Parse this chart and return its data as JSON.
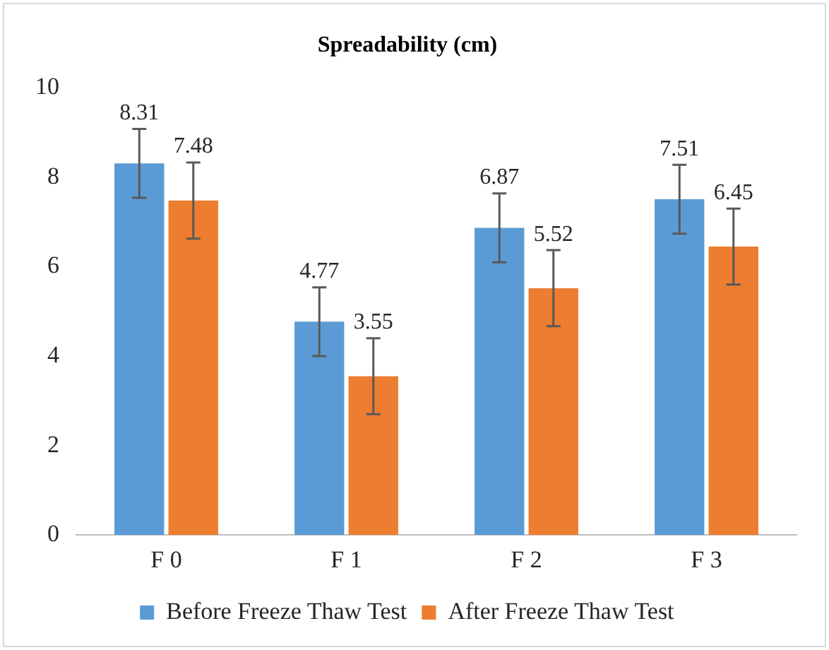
{
  "chart_data": {
    "type": "bar",
    "title": "Spreadability (cm)",
    "categories": [
      "F 0",
      "F 1",
      "F 2",
      "F 3"
    ],
    "series": [
      {
        "name": "Before Freeze Thaw Test",
        "color": "#5b9bd5",
        "values": [
          8.31,
          4.77,
          6.87,
          7.51
        ],
        "errors": [
          0.77,
          0.77,
          0.77,
          0.77
        ]
      },
      {
        "name": "After Freeze Thaw Test",
        "color": "#ed7d31",
        "values": [
          7.48,
          3.55,
          5.52,
          6.45
        ],
        "errors": [
          0.85,
          0.85,
          0.85,
          0.85
        ]
      }
    ],
    "ylim": [
      0,
      10
    ],
    "yticks": [
      0,
      2,
      4,
      6,
      8,
      10
    ],
    "grid": false,
    "legend": "bottom",
    "data_labels": true
  }
}
